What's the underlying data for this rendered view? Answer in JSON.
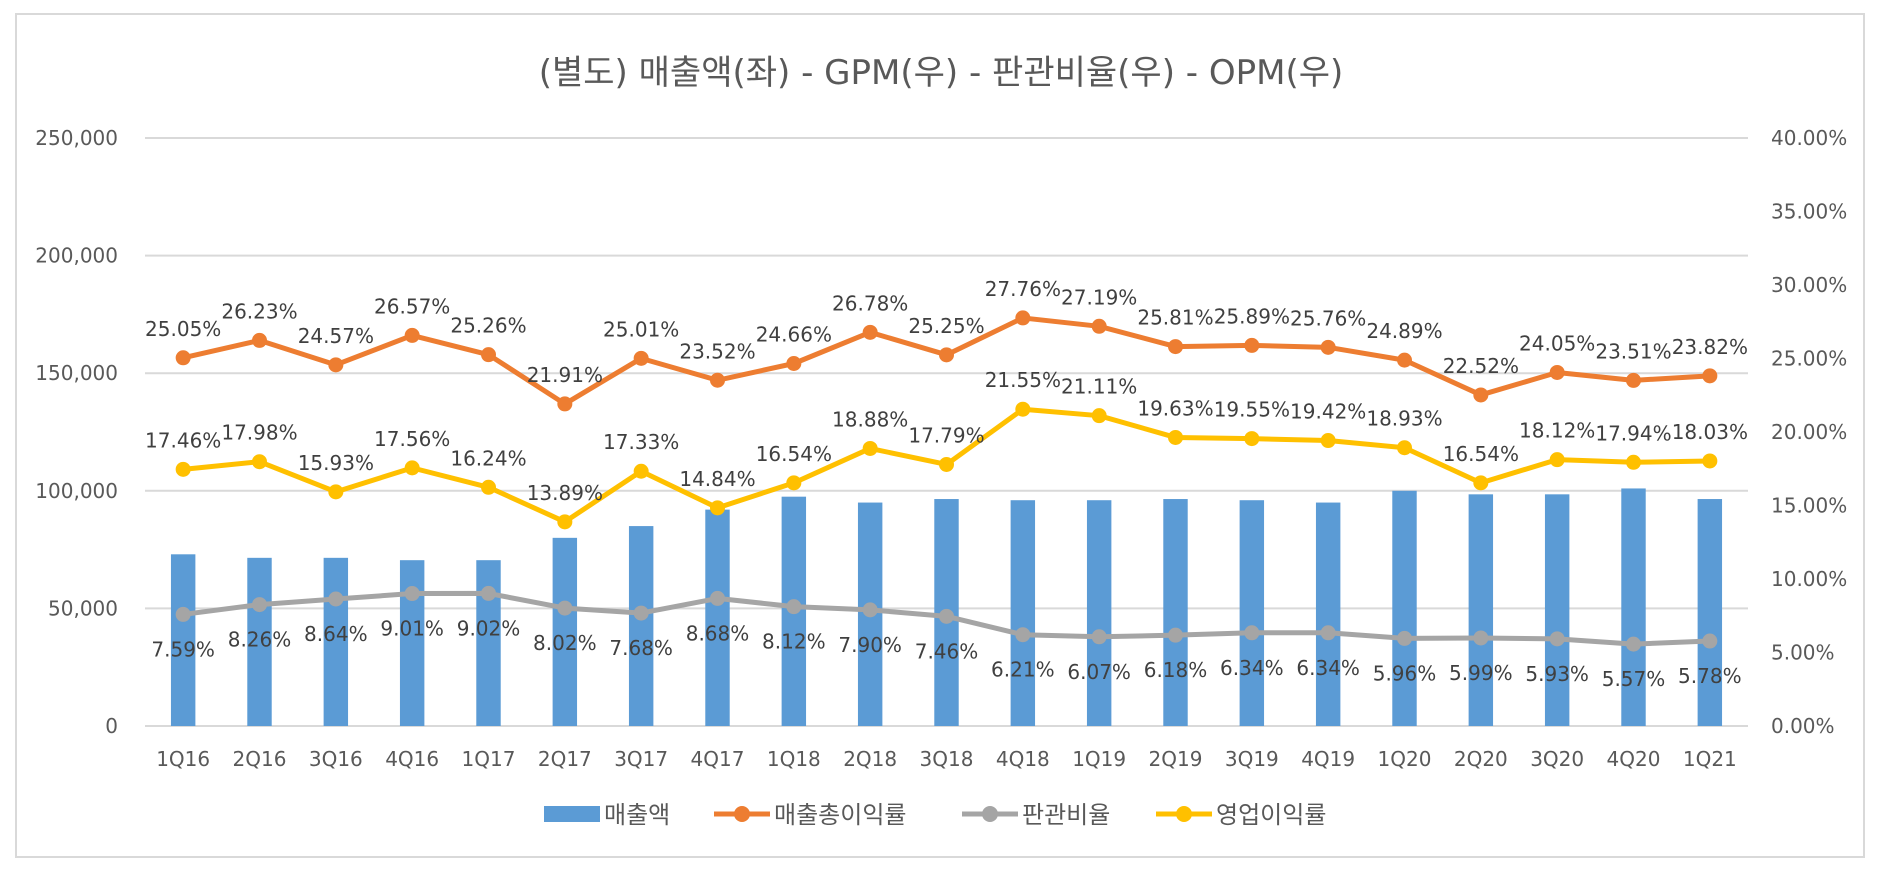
{
  "chart_data": {
    "type": "bar+line",
    "title": "(별도) 매출액(좌) - GPM(우) - 판관비율(우) - OPM(우)",
    "categories": [
      "1Q16",
      "2Q16",
      "3Q16",
      "4Q16",
      "1Q17",
      "2Q17",
      "3Q17",
      "4Q17",
      "1Q18",
      "2Q18",
      "3Q18",
      "4Q18",
      "1Q19",
      "2Q19",
      "3Q19",
      "4Q19",
      "1Q20",
      "2Q20",
      "3Q20",
      "4Q20",
      "1Q21"
    ],
    "left_axis": {
      "ylim": [
        0,
        250000
      ],
      "ticks": [
        0,
        50000,
        100000,
        150000,
        200000,
        250000
      ],
      "tick_labels": [
        "0",
        "50,000",
        "100,000",
        "150,000",
        "200,000",
        "250,000"
      ]
    },
    "right_axis": {
      "ylim": [
        0,
        40
      ],
      "ticks": [
        0,
        5,
        10,
        15,
        20,
        25,
        30,
        35,
        40
      ],
      "tick_labels": [
        "0.00%",
        "5.00%",
        "10.00%",
        "15.00%",
        "20.00%",
        "25.00%",
        "30.00%",
        "35.00%",
        "40.00%"
      ]
    },
    "grid": true,
    "legend_position": "bottom",
    "series": [
      {
        "name": "매출액",
        "kind": "bar",
        "axis": "left",
        "color": "#5b9bd5",
        "values": [
          73000,
          71500,
          71500,
          70500,
          70500,
          80000,
          85000,
          92000,
          97500,
          95000,
          96500,
          96000,
          96000,
          96500,
          96000,
          95000,
          100000,
          98500,
          98500,
          101000,
          96500
        ]
      },
      {
        "name": "매출총이익률",
        "kind": "line",
        "axis": "right",
        "color": "#ed7d31",
        "label_position": "above",
        "values": [
          25.05,
          26.23,
          24.57,
          26.57,
          25.26,
          21.91,
          25.01,
          23.52,
          24.66,
          26.78,
          25.25,
          27.76,
          27.19,
          25.81,
          25.89,
          25.76,
          24.89,
          22.52,
          24.05,
          23.51,
          23.82
        ],
        "labels": [
          "25.05%",
          "26.23%",
          "24.57%",
          "26.57%",
          "25.26%",
          "21.91%",
          "25.01%",
          "23.52%",
          "24.66%",
          "26.78%",
          "25.25%",
          "27.76%",
          "27.19%",
          "25.81%",
          "25.89%",
          "25.76%",
          "24.89%",
          "22.52%",
          "24.05%",
          "23.51%",
          "23.82%"
        ]
      },
      {
        "name": "판관비율",
        "kind": "line",
        "axis": "right",
        "color": "#a5a5a5",
        "label_position": "below",
        "values": [
          7.59,
          8.26,
          8.64,
          9.01,
          9.02,
          8.02,
          7.68,
          8.68,
          8.12,
          7.9,
          7.46,
          6.21,
          6.07,
          6.18,
          6.34,
          6.34,
          5.96,
          5.99,
          5.93,
          5.57,
          5.78
        ],
        "labels": [
          "7.59%",
          "8.26%",
          "8.64%",
          "9.01%",
          "9.02%",
          "8.02%",
          "7.68%",
          "8.68%",
          "8.12%",
          "7.90%",
          "7.46%",
          "6.21%",
          "6.07%",
          "6.18%",
          "6.34%",
          "6.34%",
          "5.96%",
          "5.99%",
          "5.93%",
          "5.57%",
          "5.78%"
        ]
      },
      {
        "name": "영업이익률",
        "kind": "line",
        "axis": "right",
        "color": "#ffc000",
        "label_position": "above",
        "values": [
          17.46,
          17.98,
          15.93,
          17.56,
          16.24,
          13.89,
          17.33,
          14.84,
          16.54,
          18.88,
          17.79,
          21.55,
          21.11,
          19.63,
          19.55,
          19.42,
          18.93,
          16.54,
          18.12,
          17.94,
          18.03
        ],
        "labels": [
          "17.46%",
          "17.98%",
          "15.93%",
          "17.56%",
          "16.24%",
          "13.89%",
          "17.33%",
          "14.84%",
          "16.54%",
          "18.88%",
          "17.79%",
          "21.55%",
          "21.11%",
          "19.63%",
          "19.55%",
          "19.42%",
          "18.93%",
          "16.54%",
          "18.12%",
          "17.94%",
          "18.03%"
        ]
      }
    ]
  }
}
